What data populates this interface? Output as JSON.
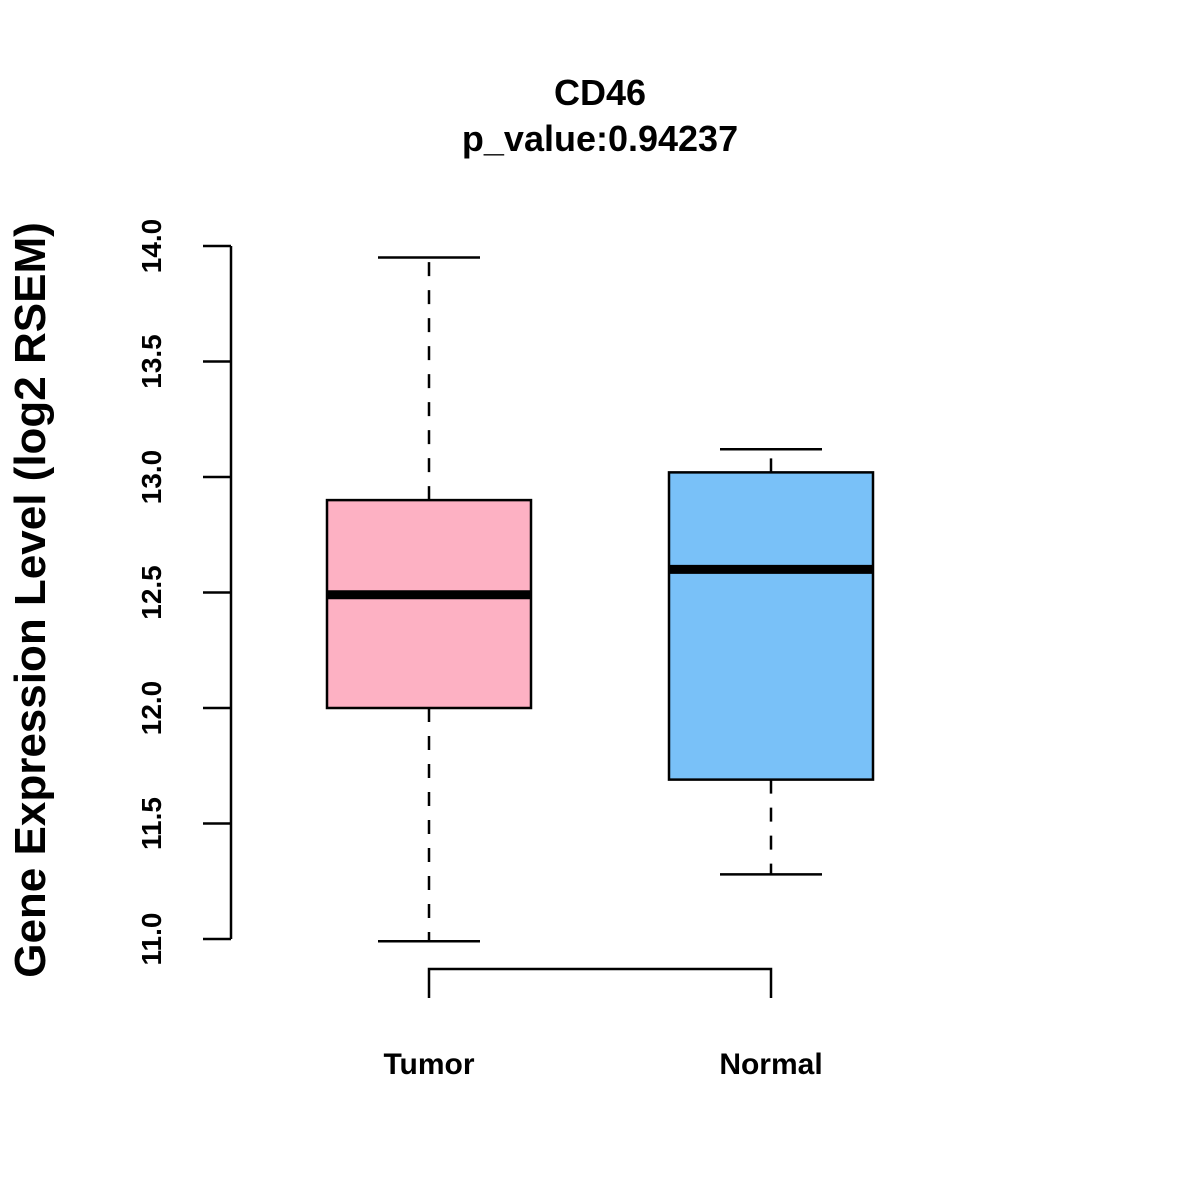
{
  "chart_data": {
    "type": "boxplot",
    "title": "CD46",
    "subtitle": "p_value:0.94237",
    "xlabel": "",
    "ylabel": "Gene Expression Level (log2 RSEM)",
    "ylim": [
      11.0,
      14.0
    ],
    "yticks": [
      "11.0",
      "11.5",
      "12.0",
      "12.5",
      "13.0",
      "13.5",
      "14.0"
    ],
    "grid": false,
    "categories": [
      "Tumor",
      "Normal"
    ],
    "boxes": [
      {
        "name": "Tumor",
        "whisker_low": 10.99,
        "q1": 12.0,
        "median": 12.49,
        "q3": 12.9,
        "whisker_high": 13.95,
        "color": "#FDB1C3"
      },
      {
        "name": "Normal",
        "whisker_low": 11.28,
        "q1": 11.69,
        "median": 12.6,
        "q3": 13.02,
        "whisker_high": 13.12,
        "color": "#79C1F8"
      }
    ],
    "comparison_bracket": [
      "Tumor",
      "Normal"
    ]
  }
}
